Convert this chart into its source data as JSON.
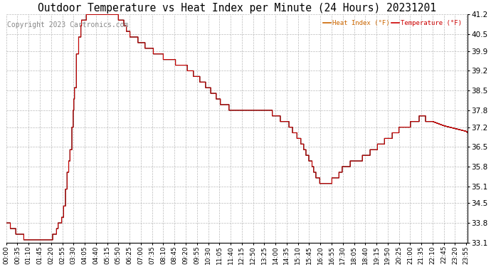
{
  "title": "Outdoor Temperature vs Heat Index per Minute (24 Hours) 20231201",
  "copyright": "Copyright 2023 Cartronics.com",
  "legend_heat": "Heat Index (°F)",
  "legend_temp": "Temperature (°F)",
  "heat_color": "#cc0000",
  "temp_color": "#000000",
  "legend_heat_color": "#cc6600",
  "legend_temp_color": "#cc0000",
  "ylim_min": 33.1,
  "ylim_max": 41.2,
  "yticks": [
    33.1,
    33.8,
    34.5,
    35.1,
    35.8,
    36.5,
    37.2,
    37.8,
    38.5,
    39.2,
    39.9,
    40.5,
    41.2
  ],
  "grid_color": "#aaaaaa",
  "bg_color": "#ffffff",
  "title_fontsize": 10.5,
  "axis_fontsize": 6.5,
  "copyright_fontsize": 7,
  "xtick_interval": 35
}
